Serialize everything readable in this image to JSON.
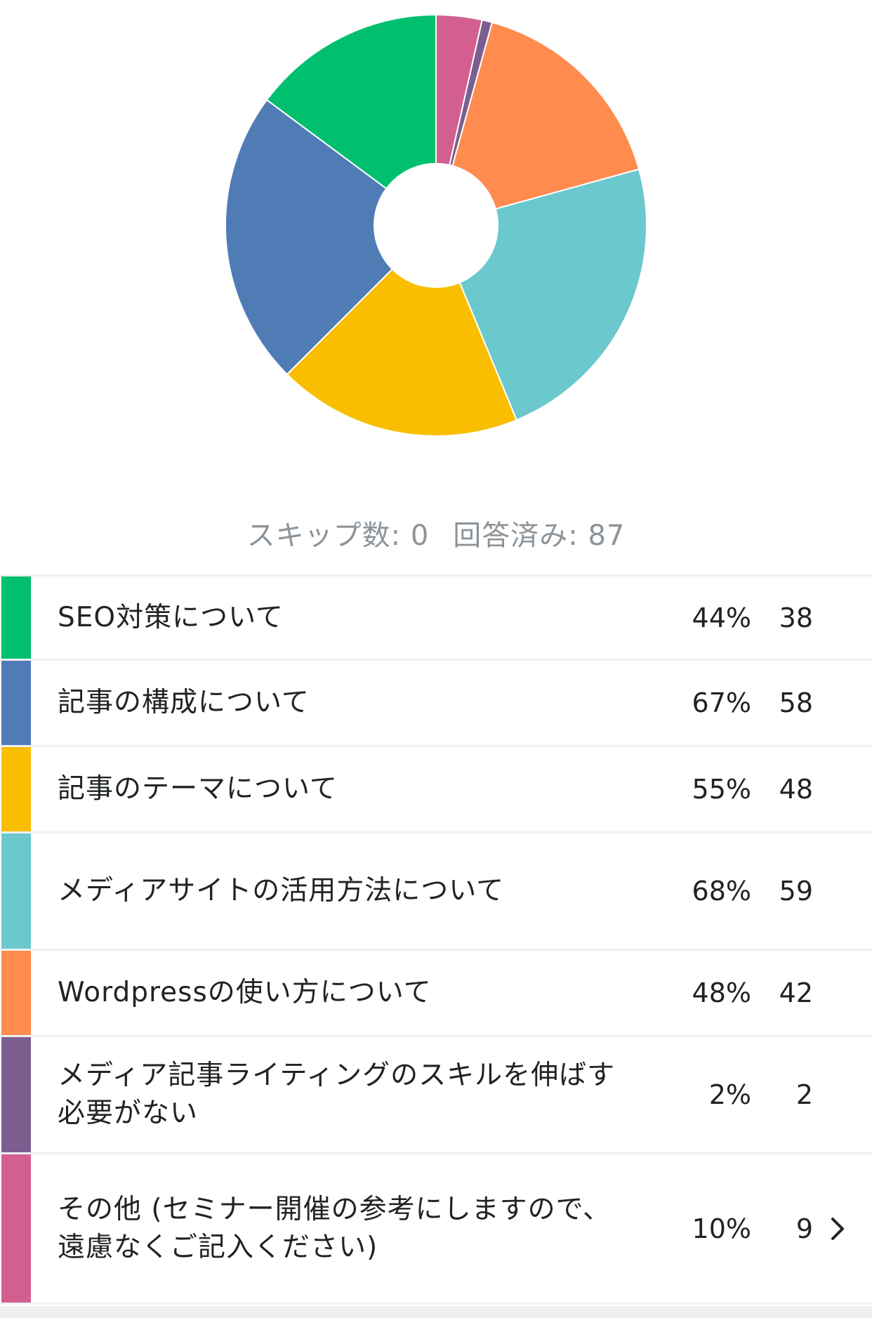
{
  "chart_data": {
    "type": "pie",
    "categories": [
      "SEO対策について",
      "記事の構成について",
      "記事のテーマについて",
      "メディアサイトの活用方法について",
      "Wordpressの使い方について",
      "メディア記事ライティングのスキルを伸ばす必要がない",
      "その他 (セミナー開催の参考にしますので、遠慮なくご記入ください)"
    ],
    "values": [
      38,
      58,
      48,
      59,
      42,
      2,
      9
    ],
    "percentages": [
      "44%",
      "67%",
      "55%",
      "68%",
      "48%",
      "2%",
      "10%"
    ],
    "slice_order_clockwise_from_top": [
      6,
      5,
      4,
      3,
      2,
      1,
      0
    ],
    "colors": [
      "#00BF6F",
      "#507CB6",
      "#F9BE00",
      "#6BC8CD",
      "#FF8B4F",
      "#7D5E90",
      "#D25F90"
    ],
    "hole": true
  },
  "summary": {
    "skipped_label": "スキップ数: 0",
    "answered_label": "回答済み: 87"
  },
  "rows": [
    {
      "label": "SEO対策について",
      "pct": "44%",
      "count": "38",
      "color": "#00BF6F"
    },
    {
      "label": "記事の構成について",
      "pct": "67%",
      "count": "58",
      "color": "#507CB6"
    },
    {
      "label": "記事のテーマについて",
      "pct": "55%",
      "count": "48",
      "color": "#F9BE00"
    },
    {
      "label": "メディアサイトの活用方法について",
      "pct": "68%",
      "count": "59",
      "color": "#6BC8CD"
    },
    {
      "label": "Wordpressの使い方について",
      "pct": "48%",
      "count": "42",
      "color": "#FF8B4F"
    },
    {
      "label": "メディア記事ライティングのスキルを伸ばす\n必要がない",
      "pct": "2%",
      "count": "2",
      "color": "#7D5E90"
    },
    {
      "label": "その他 (セミナー開催の参考にしますので、\n遠慮なくご記入ください)",
      "pct": "10%",
      "count": "9",
      "color": "#D25F90",
      "has_detail": true
    }
  ],
  "icons": {
    "detail": "chevron-right-icon"
  }
}
